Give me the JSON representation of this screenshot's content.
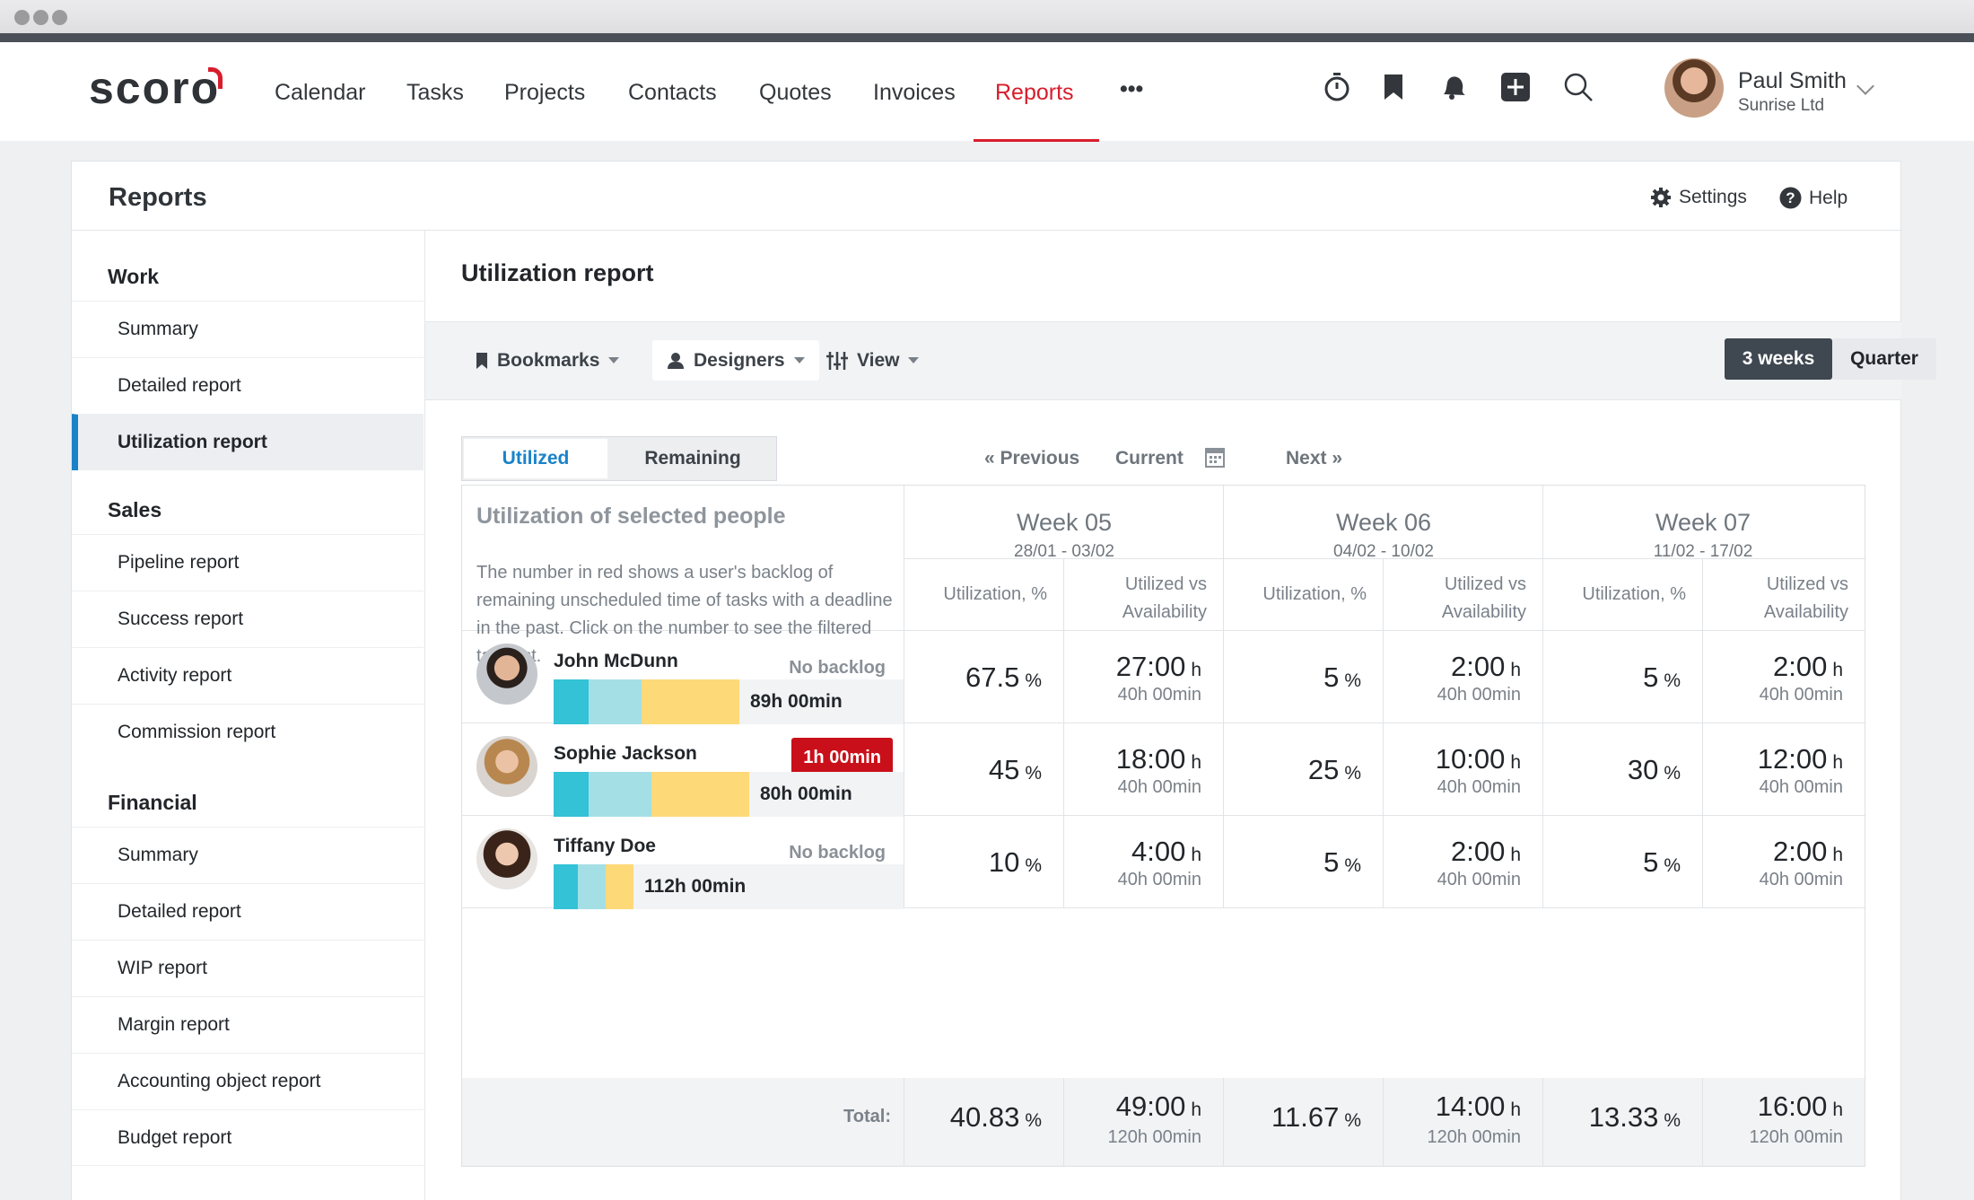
{
  "app": {
    "logo": "scoro"
  },
  "nav": {
    "items": [
      "Calendar",
      "Tasks",
      "Projects",
      "Contacts",
      "Quotes",
      "Invoices",
      "Reports"
    ],
    "more": "•••",
    "active": "Reports"
  },
  "toolbar_icons": [
    "timer-icon",
    "bookmark-icon",
    "bell-icon",
    "add-icon",
    "search-icon"
  ],
  "user": {
    "name": "Paul Smith",
    "company": "Sunrise Ltd"
  },
  "page": {
    "title": "Reports",
    "settings": "Settings",
    "help": "Help"
  },
  "sidebar": {
    "sections": [
      {
        "title": "Work",
        "items": [
          "Summary",
          "Detailed report",
          "Utilization report"
        ]
      },
      {
        "title": "Sales",
        "items": [
          "Pipeline report",
          "Success report",
          "Activity report",
          "Commission report"
        ]
      },
      {
        "title": "Financial",
        "items": [
          "Summary",
          "Detailed report",
          "WIP report",
          "Margin report",
          "Accounting object report",
          "Budget report"
        ]
      }
    ],
    "active_item": "Utilization report"
  },
  "report": {
    "title": "Utilization report",
    "filters": {
      "bookmarks": "Bookmarks",
      "group": "Designers",
      "view": "View"
    },
    "periods": {
      "weeks": "3 weeks",
      "quarter": "Quarter",
      "selected": "3 weeks"
    },
    "tabs": {
      "utilized": "Utilized",
      "remaining": "Remaining",
      "selected": "Utilized"
    },
    "pager": {
      "previous": "« Previous",
      "current": "Current",
      "next": "Next »"
    },
    "grid_title": "Utilization of selected people",
    "grid_desc": "The number in red shows a user's backlog of remaining unscheduled time of tasks with a deadline in the past. Click on the number to see the filtered task list.",
    "weeks": [
      {
        "label": "Week 05",
        "dates": "28/01 - 03/02"
      },
      {
        "label": "Week 06",
        "dates": "04/02 - 10/02"
      },
      {
        "label": "Week 07",
        "dates": "11/02 - 17/02"
      }
    ],
    "col_util": "Utilization, %",
    "col_vs": "Utilized vs Availability",
    "people": [
      {
        "name": "John McDunn",
        "backlog": "No backlog",
        "backlog_red": false,
        "hours": "89h 00min",
        "bar": [
          "#33c2d6",
          "#a5dfe6",
          "#fdd978"
        ],
        "bar_frac": [
          0.1,
          0.15,
          0.28
        ],
        "weeks": [
          {
            "util": "67.5",
            "used": "27:00",
            "avail": "40h 00min"
          },
          {
            "util": "5",
            "used": "2:00",
            "avail": "40h 00min"
          },
          {
            "util": "5",
            "used": "2:00",
            "avail": "40h 00min"
          }
        ]
      },
      {
        "name": "Sophie Jackson",
        "backlog": "1h 00min",
        "backlog_red": true,
        "hours": "80h 00min",
        "bar": [
          "#33c2d6",
          "#a5dfe6",
          "#fdd978"
        ],
        "bar_frac": [
          0.1,
          0.18,
          0.28
        ],
        "weeks": [
          {
            "util": "45",
            "used": "18:00",
            "avail": "40h 00min"
          },
          {
            "util": "25",
            "used": "10:00",
            "avail": "40h 00min"
          },
          {
            "util": "30",
            "used": "12:00",
            "avail": "40h 00min"
          }
        ]
      },
      {
        "name": "Tiffany Doe",
        "backlog": "No backlog",
        "backlog_red": false,
        "hours": "112h 00min",
        "bar": [
          "#33c2d6",
          "#a5dfe6",
          "#fdd978"
        ],
        "bar_frac": [
          0.07,
          0.08,
          0.08
        ],
        "weeks": [
          {
            "util": "10",
            "used": "4:00",
            "avail": "40h 00min"
          },
          {
            "util": "5",
            "used": "2:00",
            "avail": "40h 00min"
          },
          {
            "util": "5",
            "used": "2:00",
            "avail": "40h 00min"
          }
        ]
      }
    ],
    "total": {
      "label": "Total:",
      "weeks": [
        {
          "util": "40.83",
          "used": "49:00",
          "avail": "120h 00min"
        },
        {
          "util": "11.67",
          "used": "14:00",
          "avail": "120h 00min"
        },
        {
          "util": "13.33",
          "used": "16:00",
          "avail": "120h 00min"
        }
      ]
    },
    "units": {
      "percent": "%",
      "hours": "h"
    }
  },
  "colors": {
    "accent": "#d81d2c",
    "active_bar": "#1a82c8",
    "dark_btn": "#3f4750",
    "red_badge": "#c9101a"
  }
}
